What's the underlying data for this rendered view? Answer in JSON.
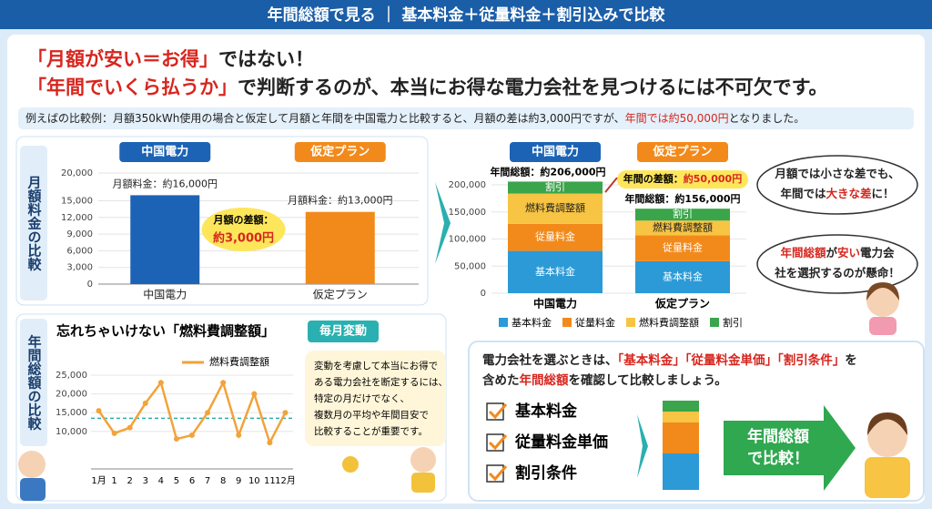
{
  "header": {
    "title": "年間総額で見る ｜ 基本料金＋従量料金＋割引込みで比較"
  },
  "headline": [
    [
      {
        "text": "「月額が安い＝お得」",
        "color": "#d7261e"
      },
      {
        "text": "ではない！",
        "color": "#222222"
      }
    ],
    [
      {
        "text": "「年間でいくら払うか」",
        "color": "#d7261e"
      },
      {
        "text": "で判断するのが、本当にお得な電力会社を見つけるには不可欠です。",
        "color": "#222222"
      }
    ]
  ],
  "example": [
    {
      "text": "例えばの比較例：月額350kWh使用の場合と仮定して月額と年間を中国電力と比較すると、月額の差は約3,000円ですが、",
      "color": "#222222"
    },
    {
      "text": "年間では約50,000円",
      "color": "#d7261e"
    },
    {
      "text": "となりました。",
      "color": "#222222"
    }
  ],
  "chart_data": [
    {
      "type": "bar",
      "side_label": "月額料金の比較",
      "categories": [
        "中国電力",
        "仮定プラン"
      ],
      "values": [
        16000,
        13000
      ],
      "value_labels": [
        "月額料金：約16,000円",
        "月額料金：約13,000円"
      ],
      "colors": [
        "#1d63b5",
        "#f28a1b"
      ],
      "ylim": [
        0,
        20000
      ],
      "yticks": [
        0,
        {
          "value": 3000,
          "label": "3,000"
        },
        {
          "value": 6000,
          "label": "6,000"
        },
        {
          "value": 9000,
          "label": "9,000"
        },
        {
          "value": 12000,
          "label": "12,000"
        },
        {
          "value": 15000,
          "label": "15,000"
        },
        {
          "value": 20000,
          "label": "20,000"
        }
      ],
      "annotation": [
        "月額の差額：",
        "約3,000円"
      ]
    },
    {
      "type": "stacked_bar",
      "categories": [
        "中国電力",
        "仮定プラン"
      ],
      "series": [
        {
          "name": "基本料金",
          "color": "#2b9ad6",
          "values": [
            78000,
            59000
          ]
        },
        {
          "name": "従量料金",
          "color": "#f28a1b",
          "values": [
            50000,
            48000
          ]
        },
        {
          "name": "燃料費調整額",
          "color": "#f7c443",
          "values": [
            56000,
            27000
          ]
        },
        {
          "name": "割引",
          "color": "#3aa54a",
          "values": [
            22000,
            22000
          ]
        }
      ],
      "totals": [
        206000,
        156000
      ],
      "total_labels": [
        "年間総額：約206,000円",
        "年間総額：約156,000円"
      ],
      "difference_label": [
        "年間の差額：",
        "約50,000円"
      ],
      "ylim": [
        0,
        200000
      ],
      "yticks": [
        0,
        {
          "value": 50000,
          "label": "50,000"
        },
        {
          "value": 100000,
          "label": "100,000"
        },
        {
          "value": 150000,
          "label": "150,000"
        },
        {
          "value": 200000,
          "label": "200,000"
        }
      ]
    },
    {
      "type": "line",
      "title": "忘れちゃいけない「燃料費調整額」",
      "badge": "毎月変動",
      "side_label": "年間総額の比較",
      "categories": [
        "1月",
        "1",
        "2",
        "3",
        "4",
        "5",
        "6",
        "7",
        "8",
        "9",
        "10",
        "11",
        "12月"
      ],
      "series": [
        {
          "name": "燃料費調整額",
          "color": "#f2a33a",
          "values": [
            15500,
            9500,
            11000,
            17500,
            23000,
            8000,
            9000,
            15000,
            23000,
            9000,
            20000,
            7000,
            15000
          ]
        }
      ],
      "average": 13500,
      "average_color": "#2ab0b0",
      "ylim": [
        0,
        25000
      ],
      "yticks": [
        {
          "value": 10000,
          "label": "10,000"
        },
        {
          "value": 15000,
          "label": "15,000"
        },
        {
          "value": 20000,
          "label": "20,000"
        },
        {
          "value": 25000,
          "label": "25,000"
        }
      ],
      "grid": true
    }
  ],
  "bubbles": [
    [
      [
        {
          "text": "月額では小さな差でも、",
          "color": "#222222"
        }
      ],
      [
        {
          "text": "年間では",
          "color": "#222222"
        },
        {
          "text": "大きな差",
          "color": "#d7261e"
        },
        {
          "text": "に！",
          "color": "#222222"
        }
      ]
    ],
    [
      [
        {
          "text": "年間総額",
          "color": "#d7261e"
        },
        {
          "text": "が",
          "color": "#222222"
        },
        {
          "text": "安い",
          "color": "#d7261e"
        },
        {
          "text": "電力会",
          "color": "#222222"
        }
      ],
      [
        {
          "text": "社を選択するのが懸命！",
          "color": "#222222"
        }
      ]
    ]
  ],
  "note": {
    "lines": [
      "変動を考慮して本当にお得で",
      "ある電力会社を断定するには、",
      "特定の月だけでなく、",
      "複数月の平均や年間目安で",
      "比較することが重要です。"
    ]
  },
  "summary": {
    "lines": [
      [
        {
          "text": "電力会社を選ぶときは、",
          "color": "#222222"
        },
        {
          "text": "「基本料金」「従量料金単価」「割引条件」",
          "color": "#d7261e"
        },
        {
          "text": "を",
          "color": "#222222"
        }
      ],
      [
        {
          "text": "含めた",
          "color": "#222222"
        },
        {
          "text": "年間総額",
          "color": "#d7261e"
        },
        {
          "text": "を確認して比較しましょう。",
          "color": "#222222"
        }
      ]
    ],
    "checklist": [
      "基本料金",
      "従量料金単価",
      "割引条件"
    ],
    "arrow_label": [
      "年間総額",
      "で比較！"
    ]
  }
}
